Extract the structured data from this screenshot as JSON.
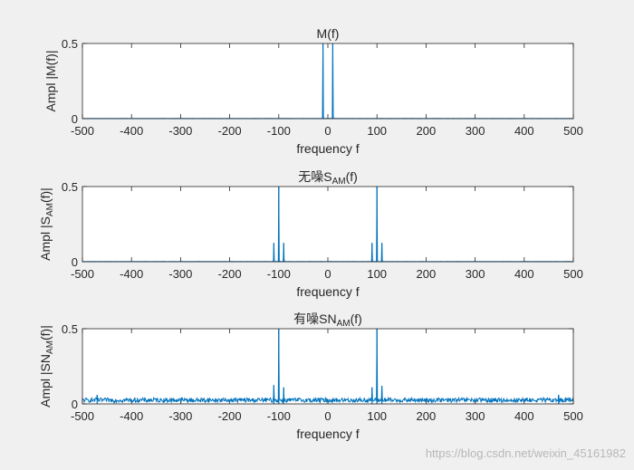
{
  "chart_data": [
    {
      "type": "line",
      "title": "M(f)",
      "title_parts": [
        "M(f)"
      ],
      "xlabel": "frequency f",
      "ylabel_parts": [
        "Ampl |M(f)|"
      ],
      "xlim": [
        -500,
        500
      ],
      "ylim": [
        0,
        0.5
      ],
      "xticks": [
        "-500",
        "-400",
        "-300",
        "-200",
        "-100",
        "0",
        "100",
        "200",
        "300",
        "400",
        "500"
      ],
      "yticks": [
        "0",
        "0.5"
      ],
      "grid": false,
      "color": "#0072bd",
      "noise_floor": 0.001,
      "peaks": [
        {
          "f": -10,
          "amp": 0.5
        },
        {
          "f": 10,
          "amp": 0.5
        }
      ]
    },
    {
      "type": "line",
      "title": "无噪SAM(f)",
      "title_parts": [
        "无噪S",
        "AM",
        "(f)"
      ],
      "xlabel": "frequency f",
      "ylabel_parts": [
        "Ampl |S",
        "AM",
        "(f)|"
      ],
      "xlim": [
        -500,
        500
      ],
      "ylim": [
        0,
        0.5
      ],
      "xticks": [
        "-500",
        "-400",
        "-300",
        "-200",
        "-100",
        "0",
        "100",
        "200",
        "300",
        "400",
        "500"
      ],
      "yticks": [
        "0",
        "0.5"
      ],
      "grid": false,
      "color": "#0072bd",
      "noise_floor": 0.001,
      "peaks": [
        {
          "f": -110,
          "amp": 0.125
        },
        {
          "f": -100,
          "amp": 0.5
        },
        {
          "f": -90,
          "amp": 0.125
        },
        {
          "f": 90,
          "amp": 0.125
        },
        {
          "f": 100,
          "amp": 0.5
        },
        {
          "f": 110,
          "amp": 0.125
        }
      ]
    },
    {
      "type": "line",
      "title": "有噪SNAM(f)",
      "title_parts": [
        "有噪SN",
        "AM",
        "(f)"
      ],
      "xlabel": "frequency f",
      "ylabel_parts": [
        "Ampl |SN",
        "AM",
        "(f)|"
      ],
      "xlim": [
        -500,
        500
      ],
      "ylim": [
        0,
        0.5
      ],
      "xticks": [
        "-500",
        "-400",
        "-300",
        "-200",
        "-100",
        "0",
        "100",
        "200",
        "300",
        "400",
        "500"
      ],
      "yticks": [
        "0",
        "0.5"
      ],
      "grid": false,
      "color": "#0072bd",
      "noise_floor": 0.025,
      "peaks": [
        {
          "f": -470,
          "amp": 0.06
        },
        {
          "f": -110,
          "amp": 0.125
        },
        {
          "f": -100,
          "amp": 0.5
        },
        {
          "f": -90,
          "amp": 0.11
        },
        {
          "f": 90,
          "amp": 0.11
        },
        {
          "f": 100,
          "amp": 0.5
        },
        {
          "f": 110,
          "amp": 0.12
        },
        {
          "f": 470,
          "amp": 0.06
        }
      ]
    }
  ],
  "watermark": "https://blog.csdn.net/weixin_45161982"
}
